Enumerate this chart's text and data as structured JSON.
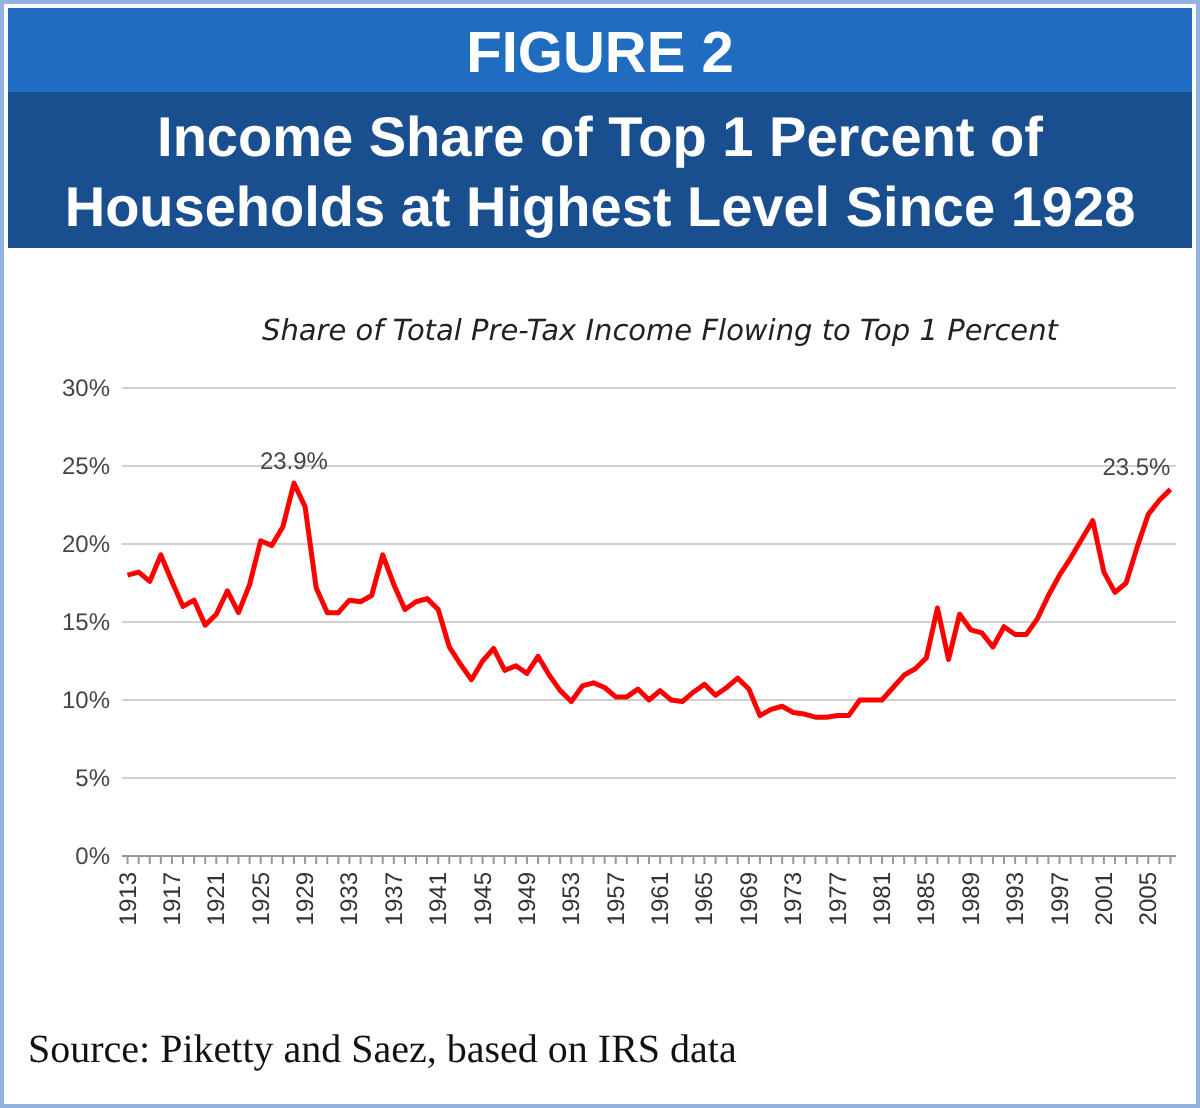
{
  "chart_data": {
    "type": "line",
    "title": "FIGURE 2",
    "subtitle": "Income Share of Top 1 Percent of Households at Highest Level Since 1928",
    "annotations": [
      "Share of Total Pre-Tax Income Flowing to Top 1 Percent",
      {
        "text": "23.9%",
        "x": 1928,
        "y": 23.9
      },
      {
        "text": "23.5%",
        "x": 2007,
        "y": 23.5
      },
      "Source: Piketty and Saez, based on IRS data"
    ],
    "x": [
      1913,
      1914,
      1915,
      1916,
      1917,
      1918,
      1919,
      1920,
      1921,
      1922,
      1923,
      1924,
      1925,
      1926,
      1927,
      1928,
      1929,
      1930,
      1931,
      1932,
      1933,
      1934,
      1935,
      1936,
      1937,
      1938,
      1939,
      1940,
      1941,
      1942,
      1943,
      1944,
      1945,
      1946,
      1947,
      1948,
      1949,
      1950,
      1951,
      1952,
      1953,
      1954,
      1955,
      1956,
      1957,
      1958,
      1959,
      1960,
      1961,
      1962,
      1963,
      1964,
      1965,
      1966,
      1967,
      1968,
      1969,
      1970,
      1971,
      1972,
      1973,
      1974,
      1975,
      1976,
      1977,
      1978,
      1979,
      1980,
      1981,
      1982,
      1983,
      1984,
      1985,
      1986,
      1987,
      1988,
      1989,
      1990,
      1991,
      1992,
      1993,
      1994,
      1995,
      1996,
      1997,
      1998,
      1999,
      2000,
      2001,
      2002,
      2003,
      2004,
      2005,
      2006,
      2007
    ],
    "series": [
      {
        "color": "#ff0000",
        "values": [
          18.0,
          18.2,
          17.6,
          19.3,
          17.6,
          16.0,
          16.4,
          14.8,
          15.5,
          17.0,
          15.6,
          17.4,
          20.2,
          19.9,
          21.1,
          23.9,
          22.4,
          17.2,
          15.6,
          15.6,
          16.4,
          16.3,
          16.7,
          19.3,
          17.4,
          15.8,
          16.3,
          16.5,
          15.8,
          13.4,
          12.3,
          11.3,
          12.5,
          13.3,
          11.9,
          12.2,
          11.7,
          12.8,
          11.6,
          10.6,
          9.9,
          10.9,
          11.1,
          10.8,
          10.2,
          10.2,
          10.7,
          10.0,
          10.6,
          10.0,
          9.9,
          10.5,
          11.0,
          10.3,
          10.8,
          11.4,
          10.7,
          9.0,
          9.4,
          9.6,
          9.2,
          9.1,
          8.9,
          8.9,
          9.0,
          9.0,
          10.0,
          10.0,
          10.0,
          10.8,
          11.6,
          12.0,
          12.7,
          15.9,
          12.6,
          15.5,
          14.5,
          14.3,
          13.4,
          14.7,
          14.2,
          14.2,
          15.2,
          16.7,
          18.0,
          19.1,
          20.3,
          21.5,
          18.2,
          16.9,
          17.5,
          19.8,
          21.9,
          22.8,
          23.5
        ]
      }
    ],
    "xlim": [
      1912.5,
      2007.5
    ],
    "xticks": [
      1913,
      {
        "value": 1914,
        "label": null
      },
      {
        "value": 1915,
        "label": null
      },
      {
        "value": 1916,
        "label": null
      },
      1917,
      {
        "value": 1918,
        "label": null
      },
      {
        "value": 1919,
        "label": null
      },
      {
        "value": 1920,
        "label": null
      },
      1921,
      {
        "value": 1922,
        "label": null
      },
      {
        "value": 1923,
        "label": null
      },
      {
        "value": 1924,
        "label": null
      },
      1925,
      {
        "value": 1926,
        "label": null
      },
      {
        "value": 1927,
        "label": null
      },
      {
        "value": 1928,
        "label": null
      },
      1929,
      {
        "value": 1930,
        "label": null
      },
      {
        "value": 1931,
        "label": null
      },
      {
        "value": 1932,
        "label": null
      },
      1933,
      {
        "value": 1934,
        "label": null
      },
      {
        "value": 1935,
        "label": null
      },
      {
        "value": 1936,
        "label": null
      },
      1937,
      {
        "value": 1938,
        "label": null
      },
      {
        "value": 1939,
        "label": null
      },
      {
        "value": 1940,
        "label": null
      },
      1941,
      {
        "value": 1942,
        "label": null
      },
      {
        "value": 1943,
        "label": null
      },
      {
        "value": 1944,
        "label": null
      },
      1945,
      {
        "value": 1946,
        "label": null
      },
      {
        "value": 1947,
        "label": null
      },
      {
        "value": 1948,
        "label": null
      },
      1949,
      {
        "value": 1950,
        "label": null
      },
      {
        "value": 1951,
        "label": null
      },
      {
        "value": 1952,
        "label": null
      },
      1953,
      {
        "value": 1954,
        "label": null
      },
      {
        "value": 1955,
        "label": null
      },
      {
        "value": 1956,
        "label": null
      },
      1957,
      {
        "value": 1958,
        "label": null
      },
      {
        "value": 1959,
        "label": null
      },
      {
        "value": 1960,
        "label": null
      },
      1961,
      {
        "value": 1962,
        "label": null
      },
      {
        "value": 1963,
        "label": null
      },
      {
        "value": 1964,
        "label": null
      },
      1965,
      {
        "value": 1966,
        "label": null
      },
      {
        "value": 1967,
        "label": null
      },
      {
        "value": 1968,
        "label": null
      },
      1969,
      {
        "value": 1970,
        "label": null
      },
      {
        "value": 1971,
        "label": null
      },
      {
        "value": 1972,
        "label": null
      },
      1973,
      {
        "value": 1974,
        "label": null
      },
      {
        "value": 1975,
        "label": null
      },
      {
        "value": 1976,
        "label": null
      },
      1977,
      {
        "value": 1978,
        "label": null
      },
      {
        "value": 1979,
        "label": null
      },
      {
        "value": 1980,
        "label": null
      },
      1981,
      {
        "value": 1982,
        "label": null
      },
      {
        "value": 1983,
        "label": null
      },
      {
        "value": 1984,
        "label": null
      },
      1985,
      {
        "value": 1986,
        "label": null
      },
      {
        "value": 1987,
        "label": null
      },
      {
        "value": 1988,
        "label": null
      },
      1989,
      {
        "value": 1990,
        "label": null
      },
      {
        "value": 1991,
        "label": null
      },
      {
        "value": 1992,
        "label": null
      },
      1993,
      {
        "value": 1994,
        "label": null
      },
      {
        "value": 1995,
        "label": null
      },
      {
        "value": 1996,
        "label": null
      },
      1997,
      {
        "value": 1998,
        "label": null
      },
      {
        "value": 1999,
        "label": null
      },
      {
        "value": 2000,
        "label": null
      },
      2001,
      {
        "value": 2002,
        "label": null
      },
      {
        "value": 2003,
        "label": null
      },
      {
        "value": 2004,
        "label": null
      },
      2005,
      {
        "value": 2006,
        "label": null
      },
      {
        "value": 2007,
        "label": null
      }
    ],
    "ylim": [
      0,
      30
    ],
    "yticks": [
      {
        "value": 0,
        "label": "0%"
      },
      {
        "value": 5,
        "label": "5%"
      },
      {
        "value": 10,
        "label": "10%"
      },
      {
        "value": 15,
        "label": "15%"
      },
      {
        "value": 20,
        "label": "20%"
      },
      {
        "value": 25,
        "label": "25%"
      },
      {
        "value": 30,
        "label": "30%"
      }
    ],
    "grid": "y",
    "marker": "none",
    "line_style": "solid"
  }
}
